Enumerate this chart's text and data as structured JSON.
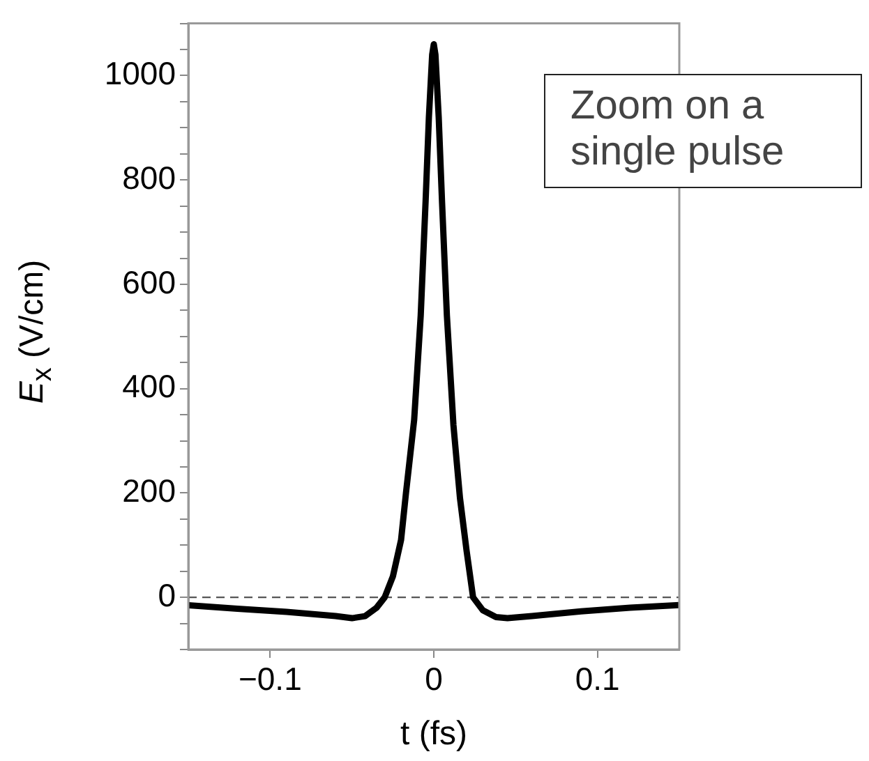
{
  "chart_data": {
    "type": "line",
    "xlabel": "t (fs)",
    "ylabel": "E$_{x}$ (V/cm)",
    "x": [
      -0.15,
      -0.12,
      -0.09,
      -0.06,
      -0.05,
      -0.042,
      -0.035,
      -0.03,
      -0.025,
      -0.02,
      -0.017,
      -0.012,
      -0.008,
      -0.005,
      -0.003,
      -0.001,
      0,
      0.001,
      0.003,
      0.005,
      0.008,
      0.012,
      0.016,
      0.02,
      0.024,
      0.03,
      0.038,
      0.045,
      0.06,
      0.09,
      0.12,
      0.15
    ],
    "series": [
      {
        "color": "#000000",
        "values": [
          -15,
          -22,
          -28,
          -36,
          -40,
          -36,
          -20,
          0,
          40,
          110,
          200,
          340,
          540,
          760,
          920,
          1040,
          1060,
          1040,
          920,
          760,
          540,
          330,
          190,
          90,
          0,
          -25,
          -38,
          -40,
          -36,
          -27,
          -20,
          -15
        ]
      }
    ],
    "xlim": [
      -0.15,
      0.15
    ],
    "xticks": [
      {
        "value": -0.1,
        "label": "−0.1"
      },
      0,
      0.1
    ],
    "ylim": [
      -100,
      1100
    ],
    "yticks": [
      {
        "value": -100,
        "label": null
      },
      {
        "value": -50,
        "label": null
      },
      0,
      {
        "value": 50,
        "label": null
      },
      {
        "value": 100,
        "label": null
      },
      {
        "value": 150,
        "label": null
      },
      200,
      {
        "value": 250,
        "label": null
      },
      {
        "value": 300,
        "label": null
      },
      {
        "value": 350,
        "label": null
      },
      400,
      {
        "value": 450,
        "label": null
      },
      {
        "value": 500,
        "label": null
      },
      {
        "value": 550,
        "label": null
      },
      600,
      {
        "value": 650,
        "label": null
      },
      {
        "value": 700,
        "label": null
      },
      {
        "value": 750,
        "label": null
      },
      800,
      {
        "value": 850,
        "label": null
      },
      {
        "value": 900,
        "label": null
      },
      {
        "value": 950,
        "label": null
      },
      1000,
      {
        "value": 1050,
        "label": null
      },
      {
        "value": 1100,
        "label": null
      }
    ],
    "ref_lines": [
      {
        "axis": "y",
        "value": 0,
        "color": "#555555",
        "line_style": "dashed"
      }
    ],
    "annotations": [
      "Zoom on a single pulse"
    ],
    "grid": false,
    "legend": false,
    "marker": "none",
    "line_style": "solid"
  }
}
